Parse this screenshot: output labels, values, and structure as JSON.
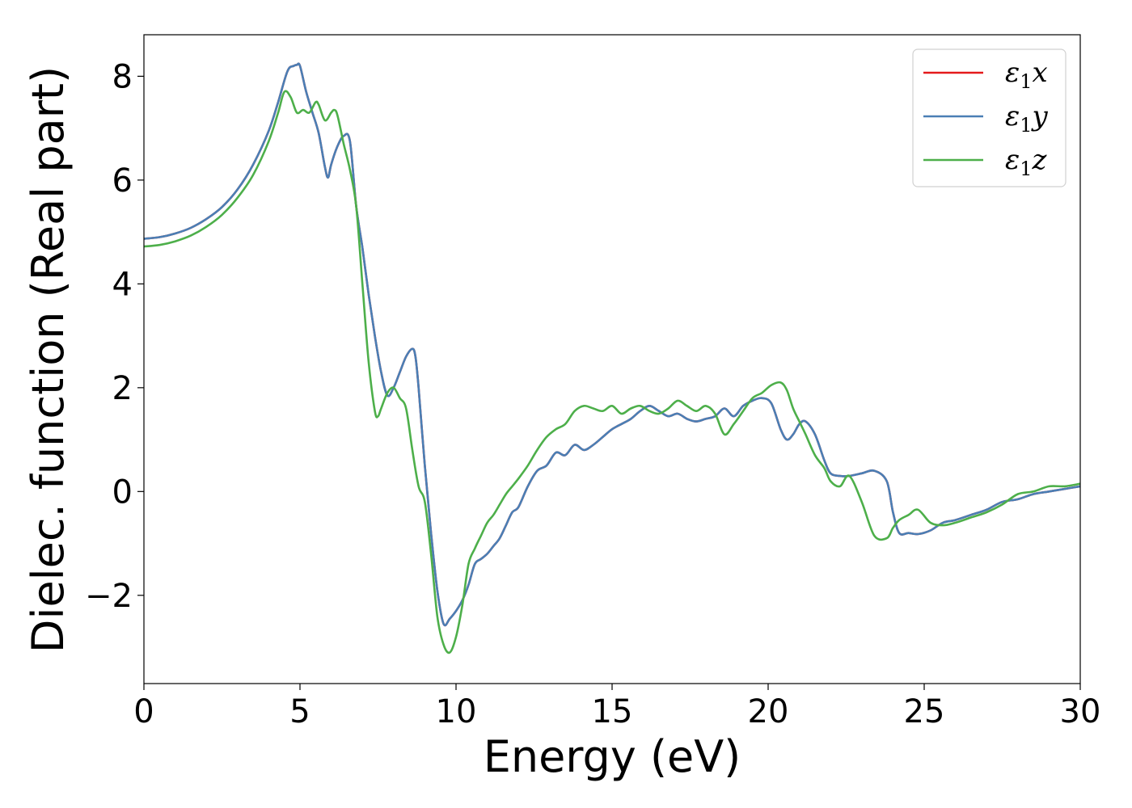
{
  "chart_data": {
    "type": "line",
    "title": "",
    "xlabel": "Energy (eV)",
    "ylabel": "Dielec. function (Real part)",
    "xlim": [
      0,
      30
    ],
    "ylim": [
      -3.7,
      8.8
    ],
    "xticks": [
      0,
      5,
      10,
      15,
      20,
      25,
      30
    ],
    "yticks": [
      -2,
      0,
      2,
      4,
      6,
      8
    ],
    "xtick_labels": [
      "0",
      "5",
      "10",
      "15",
      "20",
      "25",
      "30"
    ],
    "ytick_labels": [
      "−2",
      "0",
      "2",
      "4",
      "6",
      "8"
    ],
    "grid": false,
    "legend_position": "top-right",
    "series": [
      {
        "name": "ε₁x",
        "name_parts": [
          "ε",
          "1",
          "x"
        ],
        "color": "#e41a1c",
        "x": [
          0,
          0.5,
          1,
          1.5,
          2,
          2.5,
          3,
          3.5,
          4,
          4.3,
          4.6,
          4.8,
          4.9,
          5,
          5.2,
          5.4,
          5.6,
          5.8,
          5.9,
          6,
          6.2,
          6.4,
          6.6,
          6.8,
          7,
          7.2,
          7.4,
          7.6,
          7.8,
          8,
          8.2,
          8.4,
          8.6,
          8.7,
          8.8,
          9,
          9.2,
          9.4,
          9.6,
          9.8,
          10,
          10.2,
          10.4,
          10.6,
          10.8,
          11,
          11.2,
          11.4,
          11.6,
          11.8,
          12,
          12.3,
          12.6,
          12.9,
          13.2,
          13.5,
          13.8,
          14.1,
          14.4,
          14.7,
          15,
          15.3,
          15.6,
          15.9,
          16.2,
          16.5,
          16.8,
          17.1,
          17.4,
          17.7,
          18,
          18.3,
          18.6,
          18.9,
          19.2,
          19.5,
          19.8,
          20.1,
          20.4,
          20.6,
          20.8,
          21,
          21.2,
          21.5,
          21.8,
          22,
          22.3,
          22.6,
          23,
          23.4,
          23.8,
          24,
          24.2,
          24.5,
          24.8,
          25.2,
          25.6,
          26,
          26.5,
          27,
          27.5,
          28,
          28.5,
          29,
          29.5,
          30
        ],
        "y": [
          4.87,
          4.9,
          4.97,
          5.08,
          5.25,
          5.48,
          5.82,
          6.3,
          6.95,
          7.5,
          8.1,
          8.2,
          8.22,
          8.2,
          7.7,
          7.3,
          6.9,
          6.25,
          6.05,
          6.3,
          6.65,
          6.85,
          6.75,
          5.5,
          4.7,
          3.8,
          3.0,
          2.3,
          1.85,
          2.0,
          2.3,
          2.6,
          2.75,
          2.6,
          2.0,
          0.5,
          -0.8,
          -1.9,
          -2.55,
          -2.45,
          -2.3,
          -2.1,
          -1.8,
          -1.4,
          -1.3,
          -1.2,
          -1.05,
          -0.9,
          -0.65,
          -0.4,
          -0.3,
          0.1,
          0.4,
          0.5,
          0.75,
          0.7,
          0.9,
          0.8,
          0.9,
          1.05,
          1.2,
          1.3,
          1.4,
          1.55,
          1.65,
          1.55,
          1.45,
          1.5,
          1.4,
          1.35,
          1.4,
          1.45,
          1.6,
          1.45,
          1.65,
          1.75,
          1.8,
          1.7,
          1.2,
          1.0,
          1.1,
          1.3,
          1.35,
          1.1,
          0.6,
          0.35,
          0.3,
          0.3,
          0.35,
          0.4,
          0.2,
          -0.4,
          -0.8,
          -0.8,
          -0.82,
          -0.75,
          -0.6,
          -0.55,
          -0.45,
          -0.35,
          -0.2,
          -0.15,
          -0.05,
          0.0,
          0.05,
          0.1
        ]
      },
      {
        "name": "ε₁y",
        "name_parts": [
          "ε",
          "1",
          "y"
        ],
        "color": "#4a7fb5",
        "x": [
          0,
          0.5,
          1,
          1.5,
          2,
          2.5,
          3,
          3.5,
          4,
          4.3,
          4.6,
          4.8,
          4.9,
          5,
          5.2,
          5.4,
          5.6,
          5.8,
          5.9,
          6,
          6.2,
          6.4,
          6.6,
          6.8,
          7,
          7.2,
          7.4,
          7.6,
          7.8,
          8,
          8.2,
          8.4,
          8.6,
          8.7,
          8.8,
          9,
          9.2,
          9.4,
          9.6,
          9.8,
          10,
          10.2,
          10.4,
          10.6,
          10.8,
          11,
          11.2,
          11.4,
          11.6,
          11.8,
          12,
          12.3,
          12.6,
          12.9,
          13.2,
          13.5,
          13.8,
          14.1,
          14.4,
          14.7,
          15,
          15.3,
          15.6,
          15.9,
          16.2,
          16.5,
          16.8,
          17.1,
          17.4,
          17.7,
          18,
          18.3,
          18.6,
          18.9,
          19.2,
          19.5,
          19.8,
          20.1,
          20.4,
          20.6,
          20.8,
          21,
          21.2,
          21.5,
          21.8,
          22,
          22.3,
          22.6,
          23,
          23.4,
          23.8,
          24,
          24.2,
          24.5,
          24.8,
          25.2,
          25.6,
          26,
          26.5,
          27,
          27.5,
          28,
          28.5,
          29,
          29.5,
          30
        ],
        "y": [
          4.87,
          4.9,
          4.97,
          5.08,
          5.25,
          5.48,
          5.82,
          6.3,
          6.95,
          7.5,
          8.1,
          8.2,
          8.22,
          8.2,
          7.7,
          7.3,
          6.9,
          6.25,
          6.05,
          6.3,
          6.65,
          6.85,
          6.75,
          5.5,
          4.7,
          3.8,
          3.0,
          2.3,
          1.85,
          2.0,
          2.3,
          2.6,
          2.75,
          2.6,
          2.0,
          0.5,
          -0.8,
          -1.9,
          -2.55,
          -2.45,
          -2.3,
          -2.1,
          -1.8,
          -1.4,
          -1.3,
          -1.2,
          -1.05,
          -0.9,
          -0.65,
          -0.4,
          -0.3,
          0.1,
          0.4,
          0.5,
          0.75,
          0.7,
          0.9,
          0.8,
          0.9,
          1.05,
          1.2,
          1.3,
          1.4,
          1.55,
          1.65,
          1.55,
          1.45,
          1.5,
          1.4,
          1.35,
          1.4,
          1.45,
          1.6,
          1.45,
          1.65,
          1.75,
          1.8,
          1.7,
          1.2,
          1.0,
          1.1,
          1.3,
          1.35,
          1.1,
          0.6,
          0.35,
          0.3,
          0.3,
          0.35,
          0.4,
          0.2,
          -0.4,
          -0.8,
          -0.8,
          -0.82,
          -0.75,
          -0.6,
          -0.55,
          -0.45,
          -0.35,
          -0.2,
          -0.15,
          -0.05,
          0.0,
          0.05,
          0.1
        ]
      },
      {
        "name": "ε₁z",
        "name_parts": [
          "ε",
          "1",
          "z"
        ],
        "color": "#4daf4a",
        "x": [
          0,
          0.5,
          1,
          1.5,
          2,
          2.5,
          3,
          3.5,
          4,
          4.3,
          4.5,
          4.7,
          4.9,
          5.1,
          5.3,
          5.5,
          5.6,
          5.8,
          6,
          6.1,
          6.2,
          6.4,
          6.6,
          6.8,
          7,
          7.2,
          7.4,
          7.5,
          7.6,
          7.8,
          8,
          8.2,
          8.4,
          8.6,
          8.8,
          9,
          9.2,
          9.4,
          9.6,
          9.8,
          10,
          10.2,
          10.4,
          10.6,
          10.8,
          11,
          11.2,
          11.4,
          11.6,
          11.8,
          12,
          12.3,
          12.6,
          12.9,
          13.2,
          13.5,
          13.8,
          14.1,
          14.4,
          14.7,
          15,
          15.3,
          15.6,
          15.9,
          16.2,
          16.5,
          16.8,
          17.1,
          17.4,
          17.7,
          18,
          18.3,
          18.6,
          18.9,
          19.2,
          19.5,
          19.8,
          20.1,
          20.4,
          20.6,
          20.8,
          21,
          21.2,
          21.5,
          21.8,
          22,
          22.3,
          22.6,
          23,
          23.4,
          23.8,
          24,
          24.2,
          24.5,
          24.8,
          25.2,
          25.6,
          26,
          26.5,
          27,
          27.5,
          28,
          28.5,
          29,
          29.5,
          30
        ],
        "y": [
          4.72,
          4.75,
          4.82,
          4.93,
          5.1,
          5.33,
          5.66,
          6.1,
          6.75,
          7.3,
          7.7,
          7.6,
          7.3,
          7.35,
          7.3,
          7.5,
          7.45,
          7.15,
          7.3,
          7.35,
          7.25,
          6.7,
          6.2,
          5.5,
          4.0,
          2.5,
          1.55,
          1.45,
          1.6,
          1.9,
          2.0,
          1.8,
          1.6,
          0.8,
          0.1,
          -0.2,
          -1.2,
          -2.4,
          -2.95,
          -3.1,
          -2.8,
          -2.2,
          -1.4,
          -1.1,
          -0.85,
          -0.6,
          -0.45,
          -0.25,
          -0.05,
          0.1,
          0.25,
          0.5,
          0.8,
          1.05,
          1.2,
          1.3,
          1.55,
          1.65,
          1.6,
          1.55,
          1.65,
          1.5,
          1.6,
          1.65,
          1.55,
          1.5,
          1.6,
          1.75,
          1.65,
          1.55,
          1.65,
          1.5,
          1.1,
          1.3,
          1.55,
          1.8,
          1.9,
          2.05,
          2.1,
          1.95,
          1.6,
          1.35,
          1.1,
          0.7,
          0.45,
          0.2,
          0.1,
          0.3,
          -0.2,
          -0.85,
          -0.9,
          -0.7,
          -0.55,
          -0.45,
          -0.35,
          -0.6,
          -0.65,
          -0.6,
          -0.5,
          -0.4,
          -0.25,
          -0.05,
          0.0,
          0.1,
          0.1,
          0.15
        ]
      }
    ]
  }
}
